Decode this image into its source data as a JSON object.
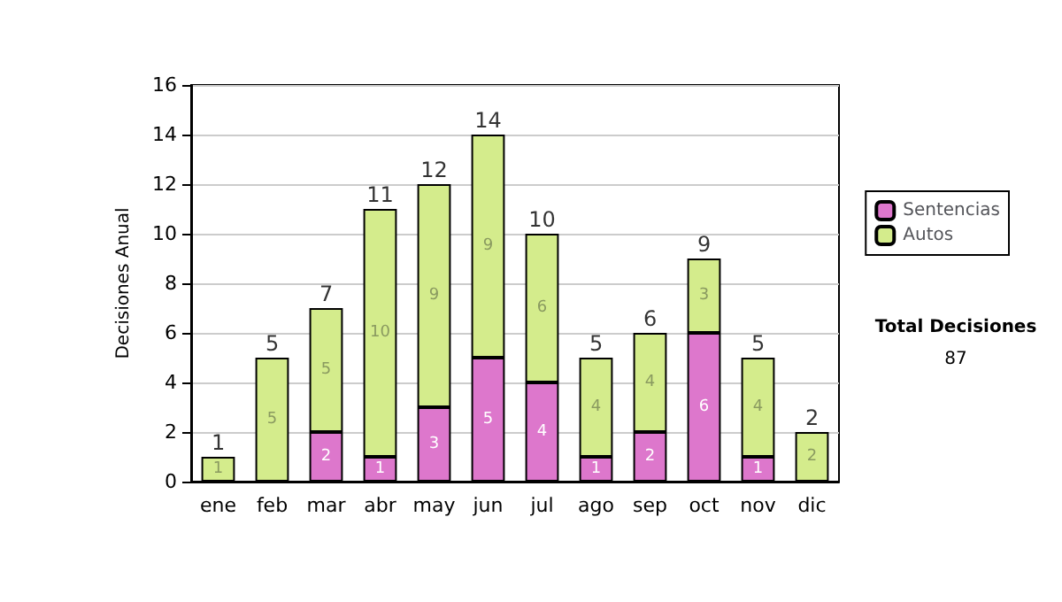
{
  "chart_data": {
    "type": "bar",
    "stacked": true,
    "ylabel": "Decisiones Anual",
    "categories": [
      "ene",
      "feb",
      "mar",
      "abr",
      "may",
      "jun",
      "jul",
      "ago",
      "sep",
      "oct",
      "nov",
      "dic"
    ],
    "series": [
      {
        "name": "Sentencias",
        "color": "#dd77cc",
        "values": [
          0,
          0,
          2,
          1,
          3,
          5,
          4,
          1,
          2,
          6,
          1,
          0
        ],
        "value_labels": [
          null,
          null,
          "2",
          "1",
          "3",
          "5",
          "4",
          "1",
          "2",
          "6",
          "1",
          null
        ]
      },
      {
        "name": "Autos",
        "color": "#d4ec8c",
        "values": [
          1,
          5,
          5,
          10,
          9,
          9,
          6,
          4,
          4,
          3,
          4,
          2
        ],
        "value_labels": [
          "1",
          "5",
          "5",
          "10",
          "9",
          "9",
          "6",
          "4",
          "4",
          "3",
          "4",
          "2"
        ]
      }
    ],
    "totals": [
      "1",
      "5",
      "7",
      "11",
      "12",
      "14",
      "10",
      "5",
      "6",
      "9",
      "5",
      "2"
    ],
    "ylim": [
      0,
      16
    ],
    "yticks": [
      0,
      2,
      4,
      6,
      8,
      10,
      12,
      14,
      16
    ],
    "grid": "y",
    "legend": "right",
    "annotations": [
      "Total Decisiones",
      "87"
    ]
  }
}
